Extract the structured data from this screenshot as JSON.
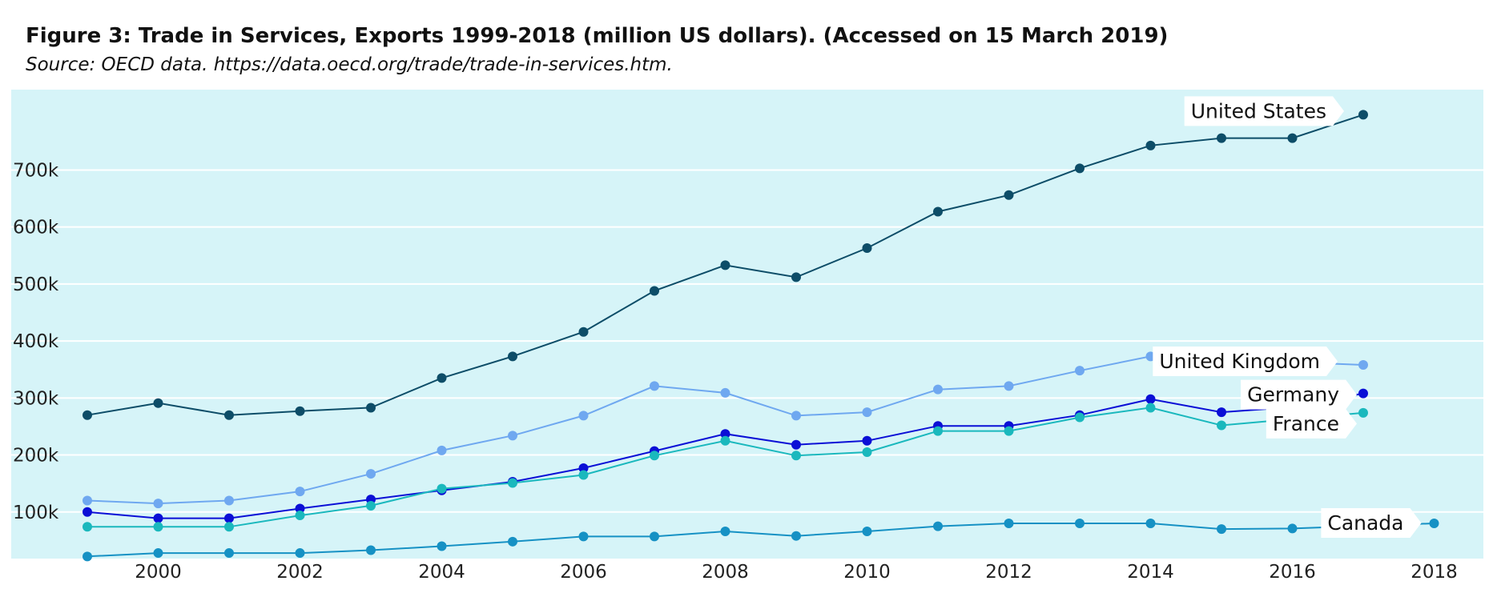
{
  "figure": {
    "title": "Figure 3: Trade in Services, Exports 1999-2018 (million US dollars). (Accessed on 15 March 2019)",
    "subtitle": "Source: OECD data. https://data.oecd.org/trade/trade-in-services.htm."
  },
  "colors": {
    "plot_background": "#d6f4f8",
    "gridline": "#ffffff"
  },
  "chart_data": {
    "type": "line",
    "title": "Figure 3: Trade in Services, Exports 1999-2018 (million US dollars). (Accessed on 15 March 2019)",
    "subtitle": "Source: OECD data. https://data.oecd.org/trade/trade-in-services.htm.",
    "xlabel": "",
    "ylabel": "",
    "x_ticks": [
      "2000",
      "2002",
      "2004",
      "2006",
      "2008",
      "2010",
      "2012",
      "2014",
      "2016",
      "2018"
    ],
    "y_ticks": [
      "100k",
      "200k",
      "300k",
      "400k",
      "500k",
      "600k",
      "700k"
    ],
    "grid": "horizontal",
    "legend": "end-of-line labels",
    "series": [
      {
        "name": "United States",
        "color": "#0d4d68",
        "x": [
          1999,
          2000,
          2001,
          2002,
          2003,
          2004,
          2005,
          2006,
          2007,
          2008,
          2009,
          2010,
          2011,
          2012,
          2013,
          2014,
          2015,
          2016,
          2017
        ],
        "values": [
          270000,
          291000,
          270000,
          277000,
          283000,
          335000,
          373000,
          416000,
          488000,
          533000,
          512000,
          563000,
          627000,
          656000,
          703000,
          743000,
          756000,
          756000,
          797000
        ],
        "end_label_x": 2017
      },
      {
        "name": "United Kingdom",
        "color": "#6fa8f0",
        "x": [
          1999,
          2000,
          2001,
          2002,
          2003,
          2004,
          2005,
          2006,
          2007,
          2008,
          2009,
          2010,
          2011,
          2012,
          2013,
          2014,
          2017
        ],
        "values": [
          120000,
          115000,
          120000,
          136000,
          167000,
          208000,
          234000,
          269000,
          321000,
          309000,
          269000,
          275000,
          315000,
          321000,
          348000,
          373000,
          358000
        ],
        "end_label_x": 2017
      },
      {
        "name": "Germany",
        "color": "#0b0fd6",
        "x": [
          1999,
          2000,
          2001,
          2002,
          2003,
          2004,
          2005,
          2006,
          2007,
          2008,
          2009,
          2010,
          2011,
          2012,
          2013,
          2014,
          2015,
          2016,
          2017
        ],
        "values": [
          100000,
          89000,
          89000,
          106000,
          122000,
          138000,
          153000,
          177000,
          207000,
          237000,
          218000,
          225000,
          251000,
          251000,
          270000,
          298000,
          275000,
          284000,
          308000
        ],
        "end_label_x": 2017
      },
      {
        "name": "France",
        "color": "#1ab8bd",
        "x": [
          1999,
          2000,
          2001,
          2002,
          2003,
          2004,
          2005,
          2006,
          2007,
          2008,
          2009,
          2010,
          2011,
          2012,
          2013,
          2014,
          2015,
          2017
        ],
        "values": [
          74000,
          74000,
          74000,
          94000,
          111000,
          141000,
          151000,
          165000,
          199000,
          225000,
          199000,
          205000,
          242000,
          242000,
          266000,
          283000,
          252000,
          274000
        ],
        "end_label_x": 2017
      },
      {
        "name": "Canada",
        "color": "#1691c4",
        "x": [
          1999,
          2000,
          2001,
          2002,
          2003,
          2004,
          2005,
          2006,
          2007,
          2008,
          2009,
          2010,
          2011,
          2012,
          2013,
          2014,
          2015,
          2016,
          2018
        ],
        "values": [
          22000,
          28000,
          28000,
          28000,
          33000,
          40000,
          48000,
          57000,
          57000,
          66000,
          58000,
          66000,
          75000,
          80000,
          80000,
          80000,
          70000,
          71000,
          80000
        ],
        "end_label_x": 2018
      }
    ]
  }
}
